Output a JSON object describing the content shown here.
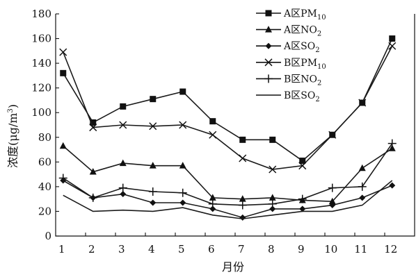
{
  "chart_data": {
    "type": "line",
    "xlabel": "月份",
    "ylabel": "浓度(μg/m³)",
    "ylabel_parts": {
      "pre": "浓度(",
      "mu": "μ",
      "unit": "g/m",
      "sup": "3",
      "post": ")"
    },
    "x": [
      1,
      2,
      3,
      4,
      5,
      6,
      7,
      8,
      9,
      10,
      11,
      12
    ],
    "x_ticks": [
      "1",
      "2",
      "3",
      "4",
      "5",
      "6",
      "7",
      "8",
      "9",
      "10",
      "11",
      "12"
    ],
    "y_ticks": [
      "0",
      "20",
      "40",
      "60",
      "80",
      "100",
      "120",
      "140",
      "160",
      "180"
    ],
    "xlim": [
      0.75,
      12.75
    ],
    "ylim": [
      0,
      180
    ],
    "grid": false,
    "legend_position": "top-right",
    "series": [
      {
        "name": "A区PM10",
        "label_main": "A区PM",
        "label_sub": "10",
        "marker": "square",
        "values": [
          132,
          92,
          105,
          111,
          117,
          93,
          78,
          78,
          61,
          82,
          108,
          160
        ]
      },
      {
        "name": "A区NO2",
        "label_main": "A区NO",
        "label_sub": "2",
        "marker": "triangle",
        "values": [
          73,
          52,
          59,
          57,
          57,
          31,
          30,
          31,
          29,
          28,
          55,
          71
        ]
      },
      {
        "name": "A区SO2",
        "label_main": "A区SO",
        "label_sub": "2",
        "marker": "diamond",
        "values": [
          45,
          31,
          34,
          27,
          27,
          22,
          15,
          22,
          22,
          25,
          31,
          41
        ]
      },
      {
        "name": "B区PM10",
        "label_main": "B区PM",
        "label_sub": "10",
        "marker": "x",
        "values": [
          149,
          88,
          90,
          89,
          90,
          82,
          63,
          54,
          57,
          82,
          108,
          154
        ]
      },
      {
        "name": "B区NO2",
        "label_main": "B区NO",
        "label_sub": "2",
        "marker": "plus",
        "values": [
          47,
          31,
          39,
          36,
          35,
          26,
          25,
          26,
          30,
          39,
          40,
          75
        ]
      },
      {
        "name": "B区SO2",
        "label_main": "B区SO",
        "label_sub": "2",
        "marker": "none",
        "values": [
          33,
          20,
          21,
          20,
          23,
          17,
          14,
          17,
          20,
          20,
          25,
          45
        ]
      }
    ]
  }
}
